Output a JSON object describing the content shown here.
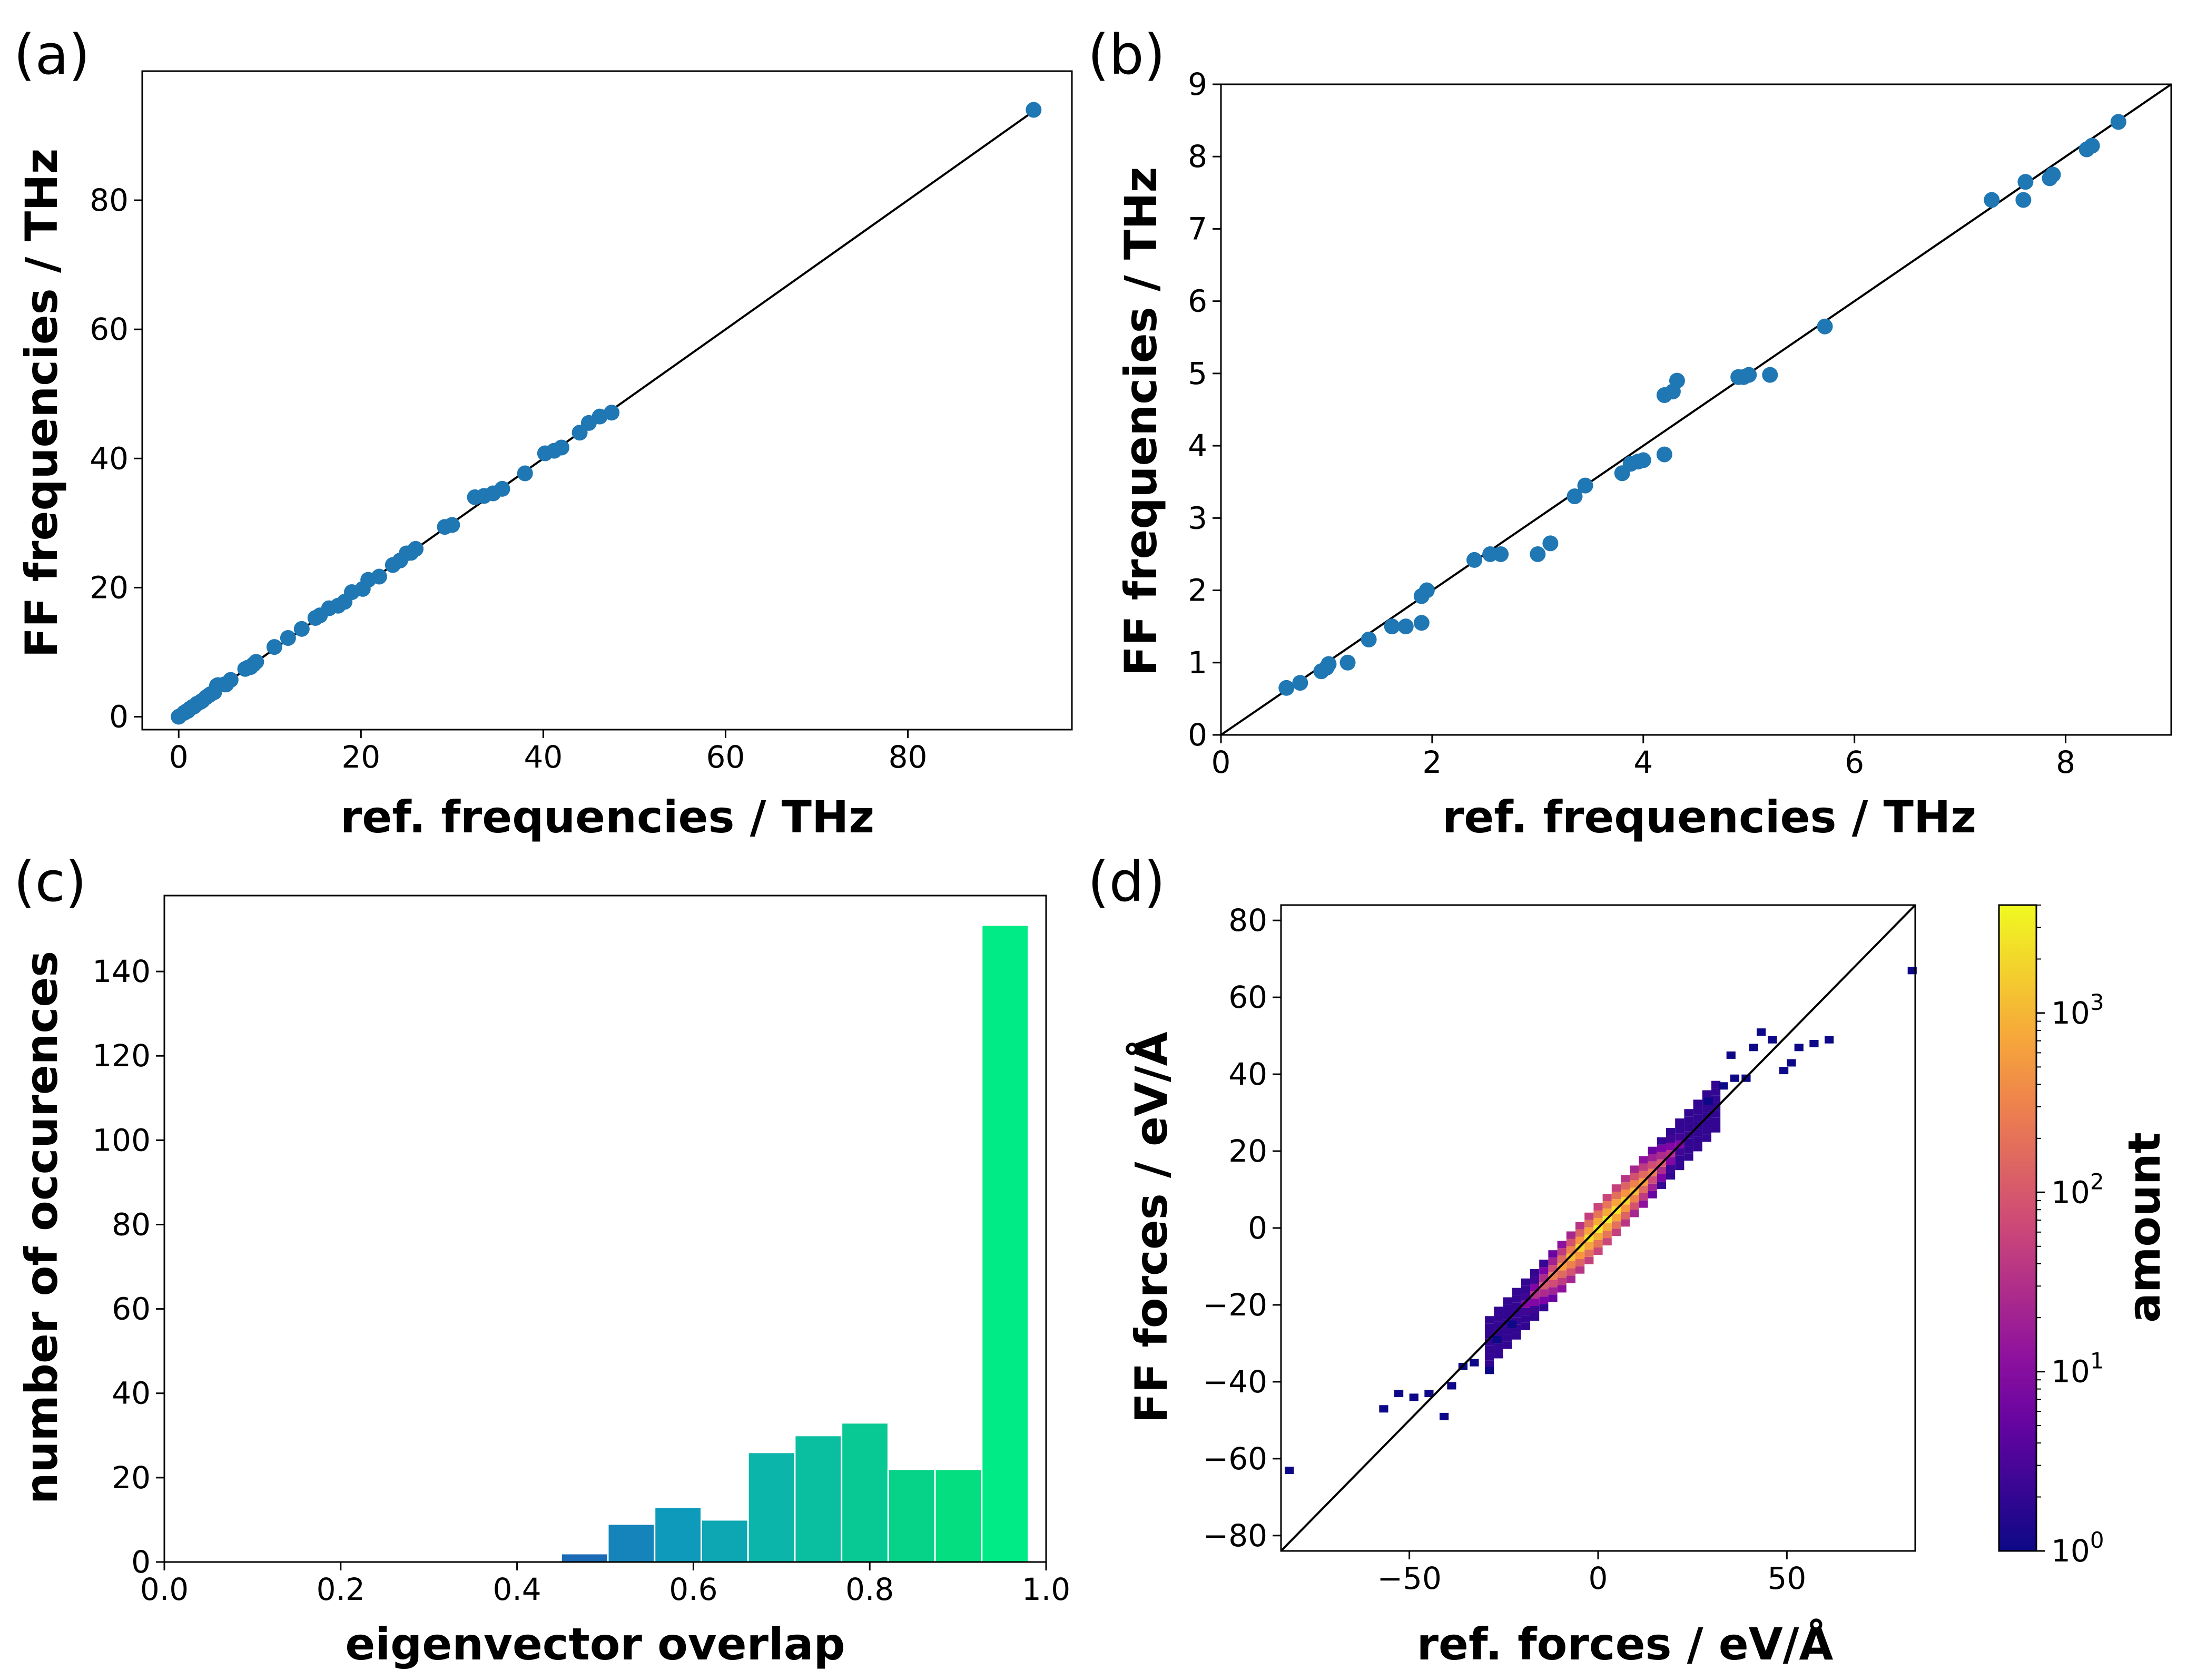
{
  "figure": {
    "panels": [
      {
        "id": "a",
        "label": "(a)"
      },
      {
        "id": "b",
        "label": "(b)"
      },
      {
        "id": "c",
        "label": "(c)"
      },
      {
        "id": "d",
        "label": "(d)"
      }
    ]
  },
  "chart_data": [
    {
      "id": "a",
      "type": "scatter",
      "xlabel": "ref. frequencies / THz",
      "ylabel": "FF frequencies / THz",
      "xlim": [
        -4,
        98
      ],
      "ylim": [
        -2,
        100
      ],
      "xticks": [
        0,
        20,
        40,
        60,
        80
      ],
      "yticks": [
        0,
        20,
        40,
        60,
        80
      ],
      "reference_line": {
        "from": [
          0,
          0
        ],
        "to": [
          94,
          94
        ]
      },
      "marker_color": "#1f77b4",
      "points": [
        [
          0,
          0
        ],
        [
          0.6,
          0.6
        ],
        [
          0.8,
          0.8
        ],
        [
          1.0,
          0.9
        ],
        [
          1.2,
          1.2
        ],
        [
          1.5,
          1.5
        ],
        [
          1.7,
          1.6
        ],
        [
          2.0,
          2.0
        ],
        [
          2.4,
          2.3
        ],
        [
          2.6,
          2.5
        ],
        [
          3.0,
          3.0
        ],
        [
          3.3,
          3.3
        ],
        [
          3.5,
          3.5
        ],
        [
          3.9,
          3.8
        ],
        [
          4.2,
          4.8
        ],
        [
          4.3,
          4.9
        ],
        [
          5.0,
          5.0
        ],
        [
          5.2,
          5.0
        ],
        [
          5.7,
          5.7
        ],
        [
          7.3,
          7.4
        ],
        [
          7.6,
          7.6
        ],
        [
          7.9,
          7.7
        ],
        [
          8.2,
          8.1
        ],
        [
          8.5,
          8.5
        ],
        [
          10.5,
          10.8
        ],
        [
          12.0,
          12.2
        ],
        [
          13.5,
          13.6
        ],
        [
          15.0,
          15.3
        ],
        [
          15.5,
          15.7
        ],
        [
          16.5,
          16.8
        ],
        [
          17.5,
          17.2
        ],
        [
          18.2,
          17.8
        ],
        [
          19.0,
          19.3
        ],
        [
          20.2,
          19.8
        ],
        [
          20.8,
          21.2
        ],
        [
          22.0,
          21.7
        ],
        [
          23.5,
          23.5
        ],
        [
          24.3,
          24.2
        ],
        [
          25.0,
          25.3
        ],
        [
          25.5,
          25.4
        ],
        [
          26.0,
          26.0
        ],
        [
          29.2,
          29.4
        ],
        [
          30.0,
          29.7
        ],
        [
          32.5,
          34.0
        ],
        [
          33.5,
          34.2
        ],
        [
          34.5,
          34.6
        ],
        [
          35.5,
          35.3
        ],
        [
          38.0,
          37.7
        ],
        [
          40.2,
          40.8
        ],
        [
          41.2,
          41.2
        ],
        [
          42.0,
          41.7
        ],
        [
          44.0,
          44.0
        ],
        [
          45.0,
          45.5
        ],
        [
          46.2,
          46.5
        ],
        [
          47.5,
          47.1
        ],
        [
          93.8,
          94.0
        ]
      ]
    },
    {
      "id": "b",
      "type": "scatter",
      "xlabel": "ref. frequencies / THz",
      "ylabel": "FF frequencies / THz",
      "xlim": [
        0,
        9
      ],
      "ylim": [
        0,
        9
      ],
      "xticks": [
        0,
        2,
        4,
        6,
        8
      ],
      "yticks": [
        0,
        1,
        2,
        3,
        4,
        5,
        6,
        7,
        8,
        9
      ],
      "reference_line": {
        "from": [
          0,
          0
        ],
        "to": [
          9,
          9
        ]
      },
      "marker_color": "#1f77b4",
      "points": [
        [
          0.62,
          0.65
        ],
        [
          0.75,
          0.72
        ],
        [
          0.95,
          0.88
        ],
        [
          1.0,
          0.93
        ],
        [
          1.02,
          0.98
        ],
        [
          1.2,
          1.0
        ],
        [
          1.4,
          1.32
        ],
        [
          1.62,
          1.5
        ],
        [
          1.75,
          1.5
        ],
        [
          1.9,
          1.55
        ],
        [
          1.9,
          1.92
        ],
        [
          1.95,
          2.0
        ],
        [
          2.4,
          2.42
        ],
        [
          2.55,
          2.5
        ],
        [
          2.65,
          2.5
        ],
        [
          3.0,
          2.5
        ],
        [
          3.12,
          2.65
        ],
        [
          3.35,
          3.3
        ],
        [
          3.45,
          3.45
        ],
        [
          3.8,
          3.62
        ],
        [
          3.88,
          3.75
        ],
        [
          3.95,
          3.78
        ],
        [
          4.0,
          3.8
        ],
        [
          4.2,
          3.88
        ],
        [
          4.2,
          4.7
        ],
        [
          4.28,
          4.75
        ],
        [
          4.32,
          4.9
        ],
        [
          4.9,
          4.95
        ],
        [
          4.95,
          4.95
        ],
        [
          5.0,
          4.98
        ],
        [
          5.2,
          4.98
        ],
        [
          5.72,
          5.65
        ],
        [
          7.3,
          7.4
        ],
        [
          7.6,
          7.4
        ],
        [
          7.62,
          7.65
        ],
        [
          7.85,
          7.7
        ],
        [
          7.88,
          7.75
        ],
        [
          8.2,
          8.1
        ],
        [
          8.25,
          8.15
        ],
        [
          8.5,
          8.48
        ]
      ]
    },
    {
      "id": "c",
      "type": "bar",
      "xlabel": "eigenvector overlap",
      "ylabel": "number of occurences",
      "xlim": [
        0.0,
        1.0
      ],
      "ylim": [
        0,
        158
      ],
      "xticks": [
        "0.0",
        "0.2",
        "0.4",
        "0.6",
        "0.8",
        "1.0"
      ],
      "yticks": [
        0,
        20,
        40,
        60,
        80,
        100,
        120,
        140
      ],
      "bin_edges": [
        0.45,
        0.503,
        0.556,
        0.609,
        0.662,
        0.715,
        0.768,
        0.821,
        0.874,
        0.927,
        0.98
      ],
      "values": [
        2,
        9,
        13,
        10,
        26,
        30,
        33,
        22,
        22,
        151
      ],
      "colors": [
        "#1b6ab6",
        "#1484ba",
        "#0e9aba",
        "#0ca7b3",
        "#0bb5aa",
        "#0abfa0",
        "#08c893",
        "#06d288",
        "#05dd81",
        "#00ea85"
      ]
    },
    {
      "id": "d",
      "type": "heatmap",
      "xlabel": "ref. forces / eV/Å",
      "ylabel": "FF forces / eV/Å",
      "xlim": [
        -84,
        84
      ],
      "ylim": [
        -84,
        84
      ],
      "xticks": [
        "−50",
        "0",
        "50"
      ],
      "yticks": [
        "80",
        "60",
        "40",
        "20",
        "0",
        "−20",
        "−40",
        "−60",
        "−80"
      ],
      "reference_line": {
        "from": [
          -84,
          -84
        ],
        "to": [
          84,
          84
        ]
      },
      "colorbar": {
        "label": "amount",
        "scale": "log",
        "range": [
          1,
          4000
        ],
        "ticks": [
          {
            "value": 1,
            "base": "10",
            "exp": "0"
          },
          {
            "value": 10,
            "base": "10",
            "exp": "1"
          },
          {
            "value": 100,
            "base": "10",
            "exp": "2"
          },
          {
            "value": 1000,
            "base": "10",
            "exp": "3"
          }
        ],
        "colormap": "plasma"
      },
      "density": {
        "description": "2D histogram of force pairs concentrated along the diagonal",
        "core_count_peak": 3000,
        "core_half_range": 30,
        "outliers": [
          [
            -83,
            -64
          ],
          [
            -58,
            -48
          ],
          [
            -54,
            -44
          ],
          [
            -50,
            -45
          ],
          [
            -46,
            -44
          ],
          [
            -42,
            -50
          ],
          [
            -40,
            -42
          ],
          [
            -37,
            -37
          ],
          [
            -34,
            -36
          ],
          [
            -30,
            -38
          ],
          [
            -28,
            -30
          ],
          [
            -24,
            -26
          ],
          [
            28,
            32
          ],
          [
            32,
            36
          ],
          [
            35,
            38
          ],
          [
            38,
            38
          ],
          [
            34,
            44
          ],
          [
            40,
            46
          ],
          [
            42,
            50
          ],
          [
            45,
            48
          ],
          [
            48,
            40
          ],
          [
            50,
            42
          ],
          [
            52,
            46
          ],
          [
            56,
            47
          ],
          [
            60,
            48
          ],
          [
            82,
            66
          ]
        ]
      }
    }
  ]
}
